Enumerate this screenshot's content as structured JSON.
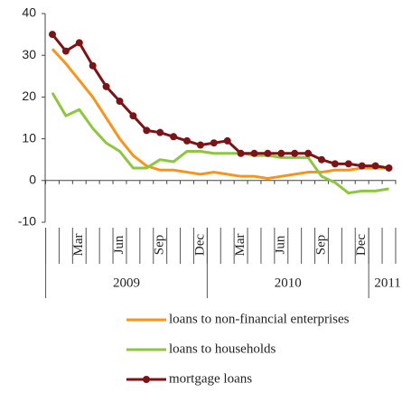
{
  "chart_data": {
    "type": "line",
    "categories": [
      null,
      null,
      "Mar",
      null,
      null,
      "Jun",
      null,
      null,
      "Sep",
      null,
      null,
      "Dec",
      null,
      null,
      "Mar",
      null,
      null,
      "Jun",
      null,
      null,
      "Sep",
      null,
      null,
      "Dec",
      null,
      null
    ],
    "years": [
      "2009",
      "2010",
      "2011"
    ],
    "series": [
      {
        "name": "loans to non-financial enterprises",
        "color": "#f7941d",
        "markers": false,
        "values": [
          31.5,
          28,
          24,
          20,
          15,
          10,
          6,
          3.5,
          2.5,
          2.5,
          2,
          1.5,
          2,
          1.5,
          1,
          1,
          0.5,
          1,
          1.5,
          2,
          2,
          2.5,
          2.5,
          3,
          3,
          3
        ]
      },
      {
        "name": "loans to households",
        "color": "#8dc63f",
        "markers": false,
        "values": [
          21,
          15.5,
          17,
          12.5,
          9,
          7,
          3,
          3,
          5,
          4.5,
          7,
          7,
          6.5,
          6.5,
          6.5,
          6,
          6,
          5.5,
          5.5,
          5.5,
          1,
          -0.5,
          -3,
          -2.5,
          -2.5,
          -2
        ]
      },
      {
        "name": "mortgage loans",
        "color": "#7b1416",
        "markers": true,
        "values": [
          35,
          31,
          33,
          27.5,
          22.5,
          19,
          15.5,
          12,
          11.5,
          10.5,
          9.5,
          8.5,
          9,
          9.5,
          6.5,
          6.5,
          6.5,
          6.5,
          6.5,
          6.5,
          5,
          4,
          4,
          3.5,
          3.5,
          3
        ]
      }
    ],
    "ylim": [
      -10,
      40
    ],
    "yticks": [
      -10,
      0,
      10,
      20,
      30,
      40
    ],
    "grid": false
  }
}
